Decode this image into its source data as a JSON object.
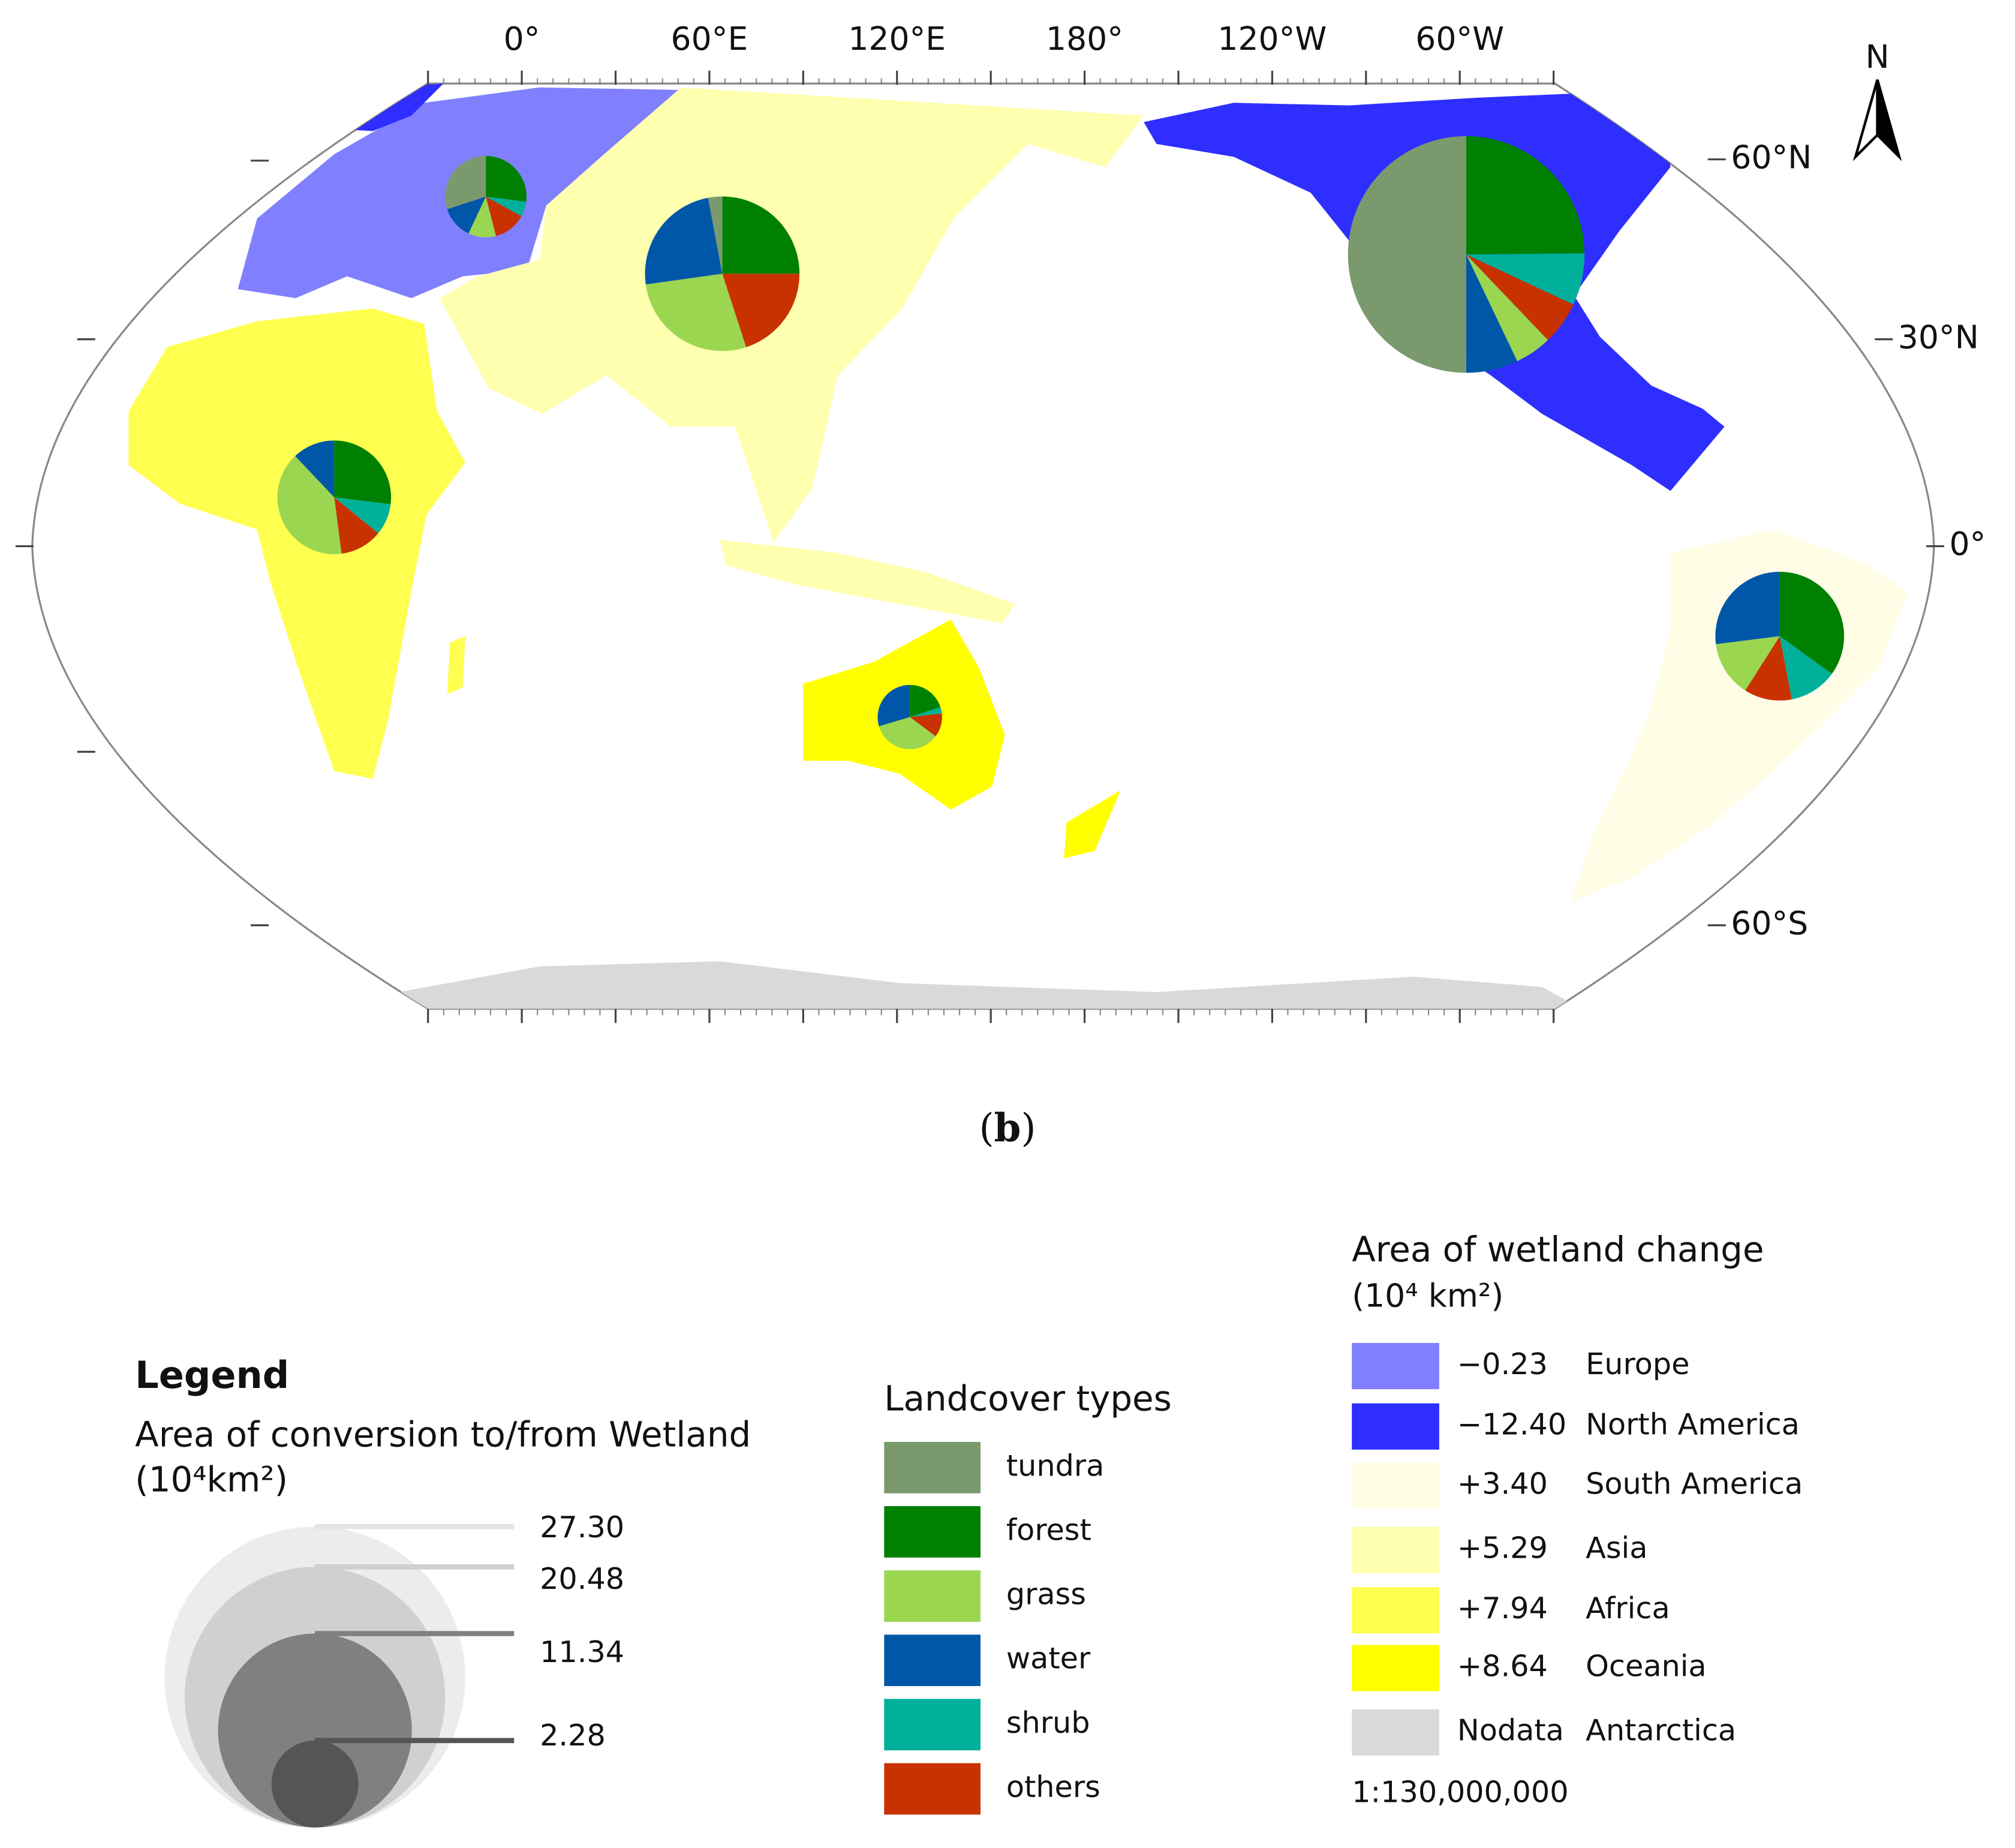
{
  "map": {
    "lon_labels": [
      "0°",
      "60°E",
      "120°E",
      "180°",
      "120°W",
      "60°W"
    ],
    "lat_labels": [
      "60°N",
      "30°N",
      "0°",
      "60°S"
    ],
    "north": "N",
    "panel_open": "(",
    "panel_letter": "b",
    "panel_close": ")",
    "pies": [
      {
        "values": [
          0.6,
          0.54,
          0.22,
          0.26,
          0.12,
          0.26
        ]
      },
      {
        "values": [
          8.45,
          4.2,
          0.85,
          1.2,
          1.2,
          1.0
        ]
      },
      {
        "values": [
          0,
          1.75,
          0.7,
          1.35,
          0.6,
          0.6
        ]
      },
      {
        "values": [
          0.21,
          1.8,
          2.0,
          1.75,
          0,
          1.44
        ]
      },
      {
        "values": [
          0,
          1.05,
          1.56,
          0.47,
          0.35,
          0.47
        ]
      },
      {
        "values": [
          0,
          0.25,
          0.44,
          0.37,
          0.04,
          0.15
        ]
      }
    ]
  },
  "legend": {
    "title": "Legend",
    "size_title": "Area of conversion to/from Wetland",
    "size_unit": "(10⁴km²)",
    "sizes": [
      {
        "value": 27.3,
        "label": "27.30"
      },
      {
        "value": 20.48,
        "label": "20.48"
      },
      {
        "value": 11.34,
        "label": "11.34"
      },
      {
        "value": 2.28,
        "label": "2.28"
      }
    ],
    "landcover_title": "Landcover types",
    "landcover": [
      {
        "name": "tundra",
        "color": "#7a9a6e"
      },
      {
        "name": "forest",
        "color": "#008000"
      },
      {
        "name": "grass",
        "color": "#9ad64f"
      },
      {
        "name": "water",
        "color": "#0057a8"
      },
      {
        "name": "shrub",
        "color": "#00b09a"
      },
      {
        "name": "others",
        "color": "#c83200"
      }
    ],
    "change_title": "Area of wetland change",
    "change_unit": "(10⁴ km²)",
    "regions": [
      {
        "name": "Europe",
        "color": "#8080ff",
        "change": {
          "value": -0.23,
          "label": "−0.23"
        }
      },
      {
        "name": "North America",
        "color": "#2e2eff",
        "change": {
          "value": -12.4,
          "label": "−12.40"
        }
      },
      {
        "name": "South America",
        "color": "#fffde6",
        "change": {
          "value": 3.4,
          "label": "+3.40"
        }
      },
      {
        "name": "Asia",
        "color": "#ffffb0",
        "change": {
          "value": 5.29,
          "label": "+5.29"
        }
      },
      {
        "name": "Africa",
        "color": "#ffff50",
        "change": {
          "value": 7.94,
          "label": "+7.94"
        }
      },
      {
        "name": "Oceania",
        "color": "#ffff00",
        "change": {
          "value": 8.64,
          "label": "+8.64"
        }
      },
      {
        "name": "Antarctica",
        "color": "#d9d9d9",
        "change": "Nodata"
      }
    ],
    "scale": "1:130,000,000"
  }
}
